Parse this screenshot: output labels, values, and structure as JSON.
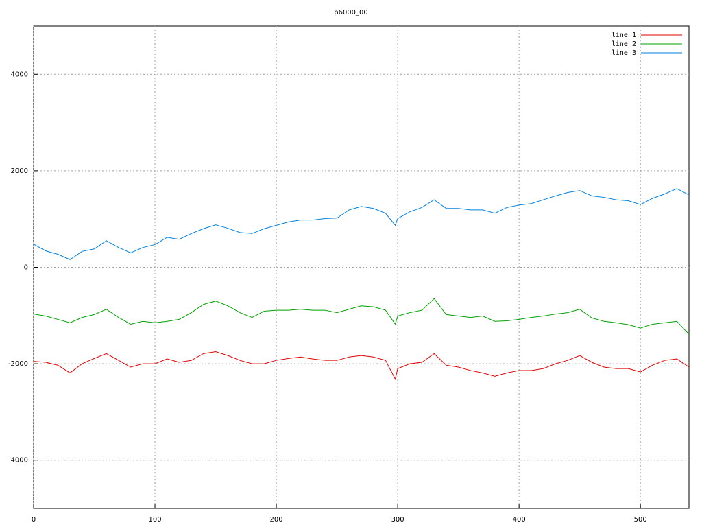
{
  "chart_data": {
    "type": "line",
    "title": "p6000_00",
    "x": [
      0,
      10,
      20,
      30,
      40,
      50,
      60,
      70,
      80,
      90,
      100,
      110,
      120,
      130,
      140,
      150,
      160,
      170,
      180,
      190,
      200,
      210,
      220,
      230,
      240,
      250,
      260,
      270,
      280,
      290,
      298,
      300,
      310,
      320,
      330,
      340,
      350,
      360,
      370,
      380,
      390,
      400,
      410,
      420,
      430,
      440,
      450,
      460,
      470,
      480,
      490,
      500,
      510,
      520,
      530,
      540
    ],
    "series": [
      {
        "name": "line 1",
        "color": "#e00000",
        "values": [
          -1950,
          -1970,
          -2030,
          -2190,
          -2000,
          -1890,
          -1790,
          -1930,
          -2070,
          -2000,
          -2000,
          -1900,
          -1970,
          -1930,
          -1790,
          -1750,
          -1830,
          -1930,
          -2000,
          -2000,
          -1930,
          -1890,
          -1860,
          -1900,
          -1930,
          -1930,
          -1860,
          -1830,
          -1860,
          -1930,
          -2320,
          -2100,
          -2000,
          -1970,
          -1790,
          -2030,
          -2070,
          -2140,
          -2190,
          -2260,
          -2190,
          -2140,
          -2140,
          -2100,
          -2000,
          -1930,
          -1830,
          -1970,
          -2070,
          -2100,
          -2100,
          -2170,
          -2030,
          -1930,
          -1900,
          -2070
        ]
      },
      {
        "name": "line 2",
        "color": "#00a000",
        "values": [
          -970,
          -1010,
          -1080,
          -1150,
          -1040,
          -980,
          -870,
          -1040,
          -1180,
          -1120,
          -1150,
          -1120,
          -1080,
          -940,
          -770,
          -700,
          -800,
          -940,
          -1040,
          -910,
          -890,
          -890,
          -870,
          -890,
          -890,
          -940,
          -870,
          -800,
          -820,
          -890,
          -1180,
          -1010,
          -940,
          -890,
          -650,
          -980,
          -1010,
          -1040,
          -1010,
          -1120,
          -1110,
          -1080,
          -1040,
          -1010,
          -970,
          -940,
          -870,
          -1050,
          -1120,
          -1150,
          -1190,
          -1260,
          -1180,
          -1150,
          -1120,
          -1390
        ]
      },
      {
        "name": "line 3",
        "color": "#0080e0",
        "values": [
          480,
          340,
          270,
          160,
          330,
          380,
          550,
          410,
          300,
          410,
          470,
          620,
          580,
          700,
          800,
          880,
          810,
          720,
          700,
          800,
          870,
          940,
          980,
          980,
          1010,
          1020,
          1190,
          1260,
          1220,
          1120,
          870,
          1010,
          1150,
          1240,
          1400,
          1220,
          1220,
          1190,
          1190,
          1120,
          1240,
          1290,
          1320,
          1400,
          1480,
          1550,
          1590,
          1480,
          1450,
          1400,
          1380,
          1300,
          1430,
          1520,
          1630,
          1500
        ]
      }
    ],
    "xlim": [
      0,
      540
    ],
    "ylim": [
      -5000,
      5000
    ],
    "xticks": [
      0,
      100,
      200,
      300,
      400,
      500
    ],
    "yticks": [
      -4000,
      -2000,
      0,
      2000,
      4000
    ],
    "grid": true,
    "legend": "top-right"
  }
}
